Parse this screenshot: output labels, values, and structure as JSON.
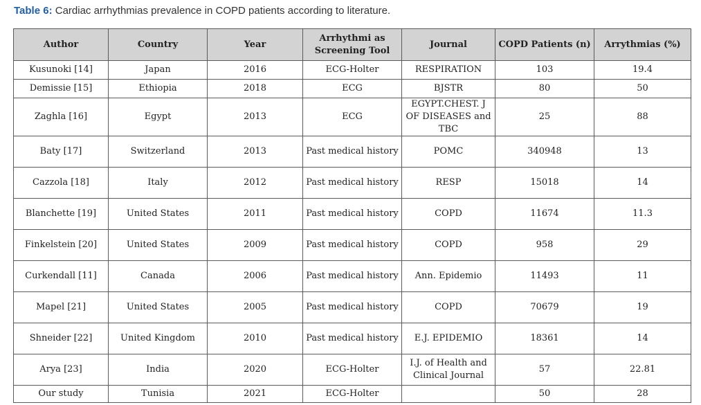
{
  "caption": {
    "label": "Table 6:",
    "text": " Cardiac arrhythmias prevalence in COPD patients according to literature."
  },
  "table": {
    "headers": [
      "Author",
      "Country",
      "Year",
      "Arrhythmi as Screening Tool",
      "Journal",
      "COPD Patients (n)",
      "Arrythmias (%)"
    ],
    "rows": [
      [
        "Kusunoki [14]",
        "Japan",
        "2016",
        "ECG-Holter",
        "RESPIRATION",
        "103",
        "19.4"
      ],
      [
        "Demissie [15]",
        "Ethiopia",
        "2018",
        "ECG",
        "BJSTR",
        "80",
        "50"
      ],
      [
        "Zaghla [16]",
        "Egypt",
        "2013",
        "ECG",
        "EGYPT.CHEST. J OF DISEASES and TBC",
        "25",
        "88"
      ],
      [
        "Baty [17]",
        "Switzerland",
        "2013",
        "Past medical history",
        "POMC",
        "340948",
        "13"
      ],
      [
        "Cazzola [18]",
        "Italy",
        "2012",
        "Past medical history",
        "RESP",
        "15018",
        "14"
      ],
      [
        "Blanchette [19]",
        "United States",
        "2011",
        "Past medical history",
        "COPD",
        "11674",
        "11.3"
      ],
      [
        "Finkelstein [20]",
        "United States",
        "2009",
        "Past medical history",
        "COPD",
        "958",
        "29"
      ],
      [
        "Curkendall [11]",
        "Canada",
        "2006",
        "Past medical history",
        "Ann. Epidemio",
        "11493",
        "11"
      ],
      [
        "Mapel [21]",
        "United States",
        "2005",
        "Past medical history",
        "COPD",
        "70679",
        "19"
      ],
      [
        "Shneider [22]",
        "United Kingdom",
        "2010",
        "Past medical history",
        "E.J. EPIDEMIO",
        "18361",
        "14"
      ],
      [
        "Arya [23]",
        "India",
        "2020",
        "ECG-Holter",
        "I.J. of Health and Clinical Journal",
        "57",
        "22.81"
      ],
      [
        "Our study",
        "Tunisia",
        "2021",
        "ECG-Holter",
        "",
        "50",
        "28"
      ]
    ]
  }
}
